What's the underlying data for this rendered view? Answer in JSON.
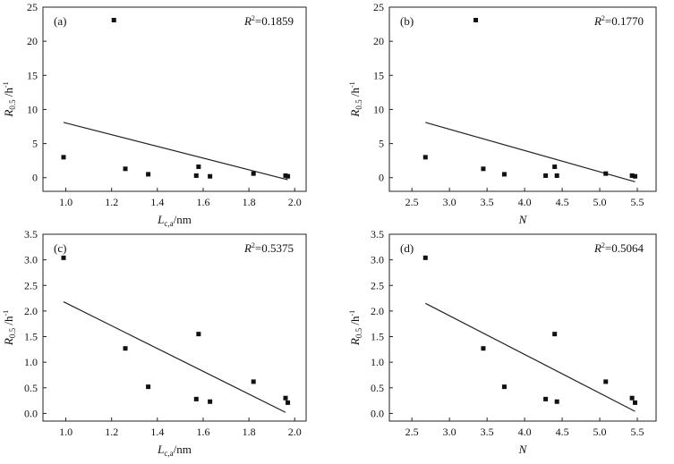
{
  "chart_data": [
    {
      "type": "scatter",
      "panel_label": "(a)",
      "r2": {
        "prefix": "R",
        "sup": "2",
        "value": "=0.1859"
      },
      "xlabel": {
        "main": "L",
        "sub": "c,a",
        "unit": "/nm"
      },
      "ylabel": {
        "main": "R",
        "sub": "0.5",
        "unit": "/h",
        "sup": "-1"
      },
      "xlim": [
        0.9,
        2.05
      ],
      "ylim": [
        -2,
        25
      ],
      "xticks": [
        {
          "v": 1.0,
          "t": "1.0"
        },
        {
          "v": 1.2,
          "t": "1.2"
        },
        {
          "v": 1.4,
          "t": "1.4"
        },
        {
          "v": 1.6,
          "t": "1.6"
        },
        {
          "v": 1.8,
          "t": "1.8"
        },
        {
          "v": 2.0,
          "t": "2.0"
        }
      ],
      "yticks": [
        {
          "v": 0,
          "t": "0"
        },
        {
          "v": 5,
          "t": "5"
        },
        {
          "v": 10,
          "t": "10"
        },
        {
          "v": 15,
          "t": "15"
        },
        {
          "v": 20,
          "t": "20"
        },
        {
          "v": 25,
          "t": "25"
        }
      ],
      "points": [
        {
          "x": 0.99,
          "y": 3.0
        },
        {
          "x": 1.21,
          "y": 23.1
        },
        {
          "x": 1.26,
          "y": 1.3
        },
        {
          "x": 1.36,
          "y": 0.5
        },
        {
          "x": 1.57,
          "y": 0.3
        },
        {
          "x": 1.58,
          "y": 1.6
        },
        {
          "x": 1.63,
          "y": 0.2
        },
        {
          "x": 1.82,
          "y": 0.6
        },
        {
          "x": 1.96,
          "y": 0.3
        },
        {
          "x": 1.97,
          "y": 0.2
        }
      ],
      "fit_line": [
        {
          "x": 0.99,
          "y": 8.1
        },
        {
          "x": 1.97,
          "y": -0.3
        }
      ]
    },
    {
      "type": "scatter",
      "panel_label": "(b)",
      "r2": {
        "prefix": "R",
        "sup": "2",
        "value": "=0.1770"
      },
      "xlabel": {
        "main": "N",
        "sub": "",
        "unit": ""
      },
      "ylabel": {
        "main": "R",
        "sub": "0.5",
        "unit": "/h",
        "sup": "-1"
      },
      "xlim": [
        2.2,
        5.75
      ],
      "ylim": [
        -2,
        25
      ],
      "xticks": [
        {
          "v": 2.5,
          "t": "2.5"
        },
        {
          "v": 3.0,
          "t": "3.0"
        },
        {
          "v": 3.5,
          "t": "3.5"
        },
        {
          "v": 4.0,
          "t": "4.0"
        },
        {
          "v": 4.5,
          "t": "4.5"
        },
        {
          "v": 5.0,
          "t": "5.0"
        },
        {
          "v": 5.5,
          "t": "5.5"
        }
      ],
      "yticks": [
        {
          "v": 0,
          "t": "0"
        },
        {
          "v": 5,
          "t": "5"
        },
        {
          "v": 10,
          "t": "10"
        },
        {
          "v": 15,
          "t": "15"
        },
        {
          "v": 20,
          "t": "20"
        },
        {
          "v": 25,
          "t": "25"
        }
      ],
      "points": [
        {
          "x": 2.68,
          "y": 3.0
        },
        {
          "x": 3.35,
          "y": 23.1
        },
        {
          "x": 3.45,
          "y": 1.3
        },
        {
          "x": 3.73,
          "y": 0.5
        },
        {
          "x": 4.28,
          "y": 0.3
        },
        {
          "x": 4.4,
          "y": 1.6
        },
        {
          "x": 4.43,
          "y": 0.3
        },
        {
          "x": 5.08,
          "y": 0.6
        },
        {
          "x": 5.43,
          "y": 0.3
        },
        {
          "x": 5.47,
          "y": 0.2
        }
      ],
      "fit_line": [
        {
          "x": 2.68,
          "y": 8.1
        },
        {
          "x": 5.47,
          "y": -0.6
        }
      ]
    },
    {
      "type": "scatter",
      "panel_label": "(c)",
      "r2": {
        "prefix": "R",
        "sup": "2",
        "value": "=0.5375"
      },
      "xlabel": {
        "main": "L",
        "sub": "c,a",
        "unit": "/nm"
      },
      "ylabel": {
        "main": "R",
        "sub": "0.5",
        "unit": "/h",
        "sup": "-1"
      },
      "xlim": [
        0.9,
        2.05
      ],
      "ylim": [
        -0.15,
        3.5
      ],
      "xticks": [
        {
          "v": 1.0,
          "t": "1.0"
        },
        {
          "v": 1.2,
          "t": "1.2"
        },
        {
          "v": 1.4,
          "t": "1.4"
        },
        {
          "v": 1.6,
          "t": "1.6"
        },
        {
          "v": 1.8,
          "t": "1.8"
        },
        {
          "v": 2.0,
          "t": "2.0"
        }
      ],
      "yticks": [
        {
          "v": 0.0,
          "t": "0.0"
        },
        {
          "v": 0.5,
          "t": "0.5"
        },
        {
          "v": 1.0,
          "t": "1.0"
        },
        {
          "v": 1.5,
          "t": "1.5"
        },
        {
          "v": 2.0,
          "t": "2.0"
        },
        {
          "v": 2.5,
          "t": "2.5"
        },
        {
          "v": 3.0,
          "t": "3.0"
        },
        {
          "v": 3.5,
          "t": "3.5"
        }
      ],
      "points": [
        {
          "x": 0.99,
          "y": 3.04
        },
        {
          "x": 1.26,
          "y": 1.27
        },
        {
          "x": 1.36,
          "y": 0.52
        },
        {
          "x": 1.57,
          "y": 0.28
        },
        {
          "x": 1.58,
          "y": 1.55
        },
        {
          "x": 1.63,
          "y": 0.23
        },
        {
          "x": 1.82,
          "y": 0.62
        },
        {
          "x": 1.96,
          "y": 0.3
        },
        {
          "x": 1.97,
          "y": 0.21
        }
      ],
      "fit_line": [
        {
          "x": 0.99,
          "y": 2.18
        },
        {
          "x": 1.96,
          "y": 0.02
        }
      ]
    },
    {
      "type": "scatter",
      "panel_label": "(d)",
      "r2": {
        "prefix": "R",
        "sup": "2",
        "value": "=0.5064"
      },
      "xlabel": {
        "main": "N",
        "sub": "",
        "unit": ""
      },
      "ylabel": {
        "main": "R",
        "sub": "0.5",
        "unit": "/h",
        "sup": "-1"
      },
      "xlim": [
        2.2,
        5.75
      ],
      "ylim": [
        -0.15,
        3.5
      ],
      "xticks": [
        {
          "v": 2.5,
          "t": "2.5"
        },
        {
          "v": 3.0,
          "t": "3.0"
        },
        {
          "v": 3.5,
          "t": "3.5"
        },
        {
          "v": 4.0,
          "t": "4.0"
        },
        {
          "v": 4.5,
          "t": "4.5"
        },
        {
          "v": 5.0,
          "t": "5.0"
        },
        {
          "v": 5.5,
          "t": "5.5"
        }
      ],
      "yticks": [
        {
          "v": 0.0,
          "t": "0.0"
        },
        {
          "v": 0.5,
          "t": "0.5"
        },
        {
          "v": 1.0,
          "t": "1.0"
        },
        {
          "v": 1.5,
          "t": "1.5"
        },
        {
          "v": 2.0,
          "t": "2.0"
        },
        {
          "v": 2.5,
          "t": "2.5"
        },
        {
          "v": 3.0,
          "t": "3.0"
        },
        {
          "v": 3.5,
          "t": "3.5"
        }
      ],
      "points": [
        {
          "x": 2.68,
          "y": 3.04
        },
        {
          "x": 3.45,
          "y": 1.27
        },
        {
          "x": 3.73,
          "y": 0.52
        },
        {
          "x": 4.28,
          "y": 0.28
        },
        {
          "x": 4.4,
          "y": 1.55
        },
        {
          "x": 4.43,
          "y": 0.23
        },
        {
          "x": 5.08,
          "y": 0.62
        },
        {
          "x": 5.43,
          "y": 0.3
        },
        {
          "x": 5.47,
          "y": 0.21
        }
      ],
      "fit_line": [
        {
          "x": 2.68,
          "y": 2.15
        },
        {
          "x": 5.47,
          "y": 0.04
        }
      ]
    }
  ]
}
